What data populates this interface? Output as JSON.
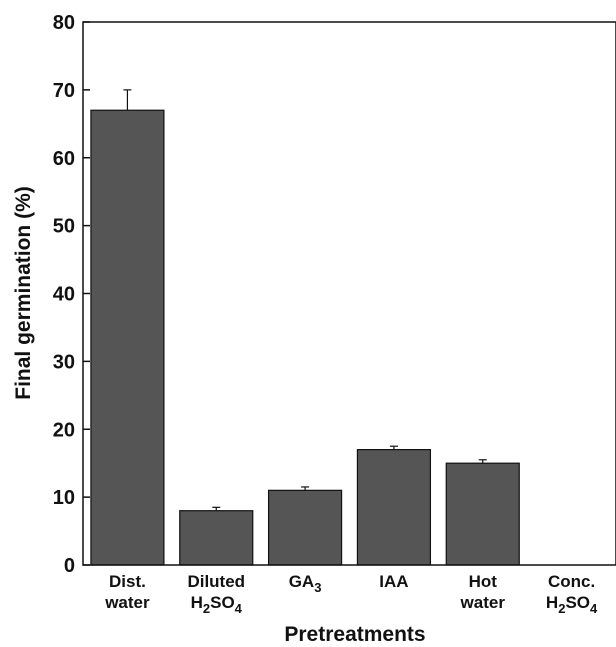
{
  "chart_data": {
    "type": "bar",
    "categories": [
      {
        "lines": [
          {
            "text": "Dist."
          },
          {
            "text": "water"
          }
        ]
      },
      {
        "lines": [
          {
            "text": "Diluted"
          },
          {
            "text": "H",
            "sub_parts": [
              [
                "2",
                "SO"
              ],
              [
                "4",
                ""
              ]
            ]
          }
        ]
      },
      {
        "lines": [
          {
            "text": "GA",
            "sub_parts": [
              [
                "3",
                ""
              ]
            ]
          }
        ]
      },
      {
        "lines": [
          {
            "text": "IAA"
          }
        ]
      },
      {
        "lines": [
          {
            "text": "Hot"
          },
          {
            "text": "water"
          }
        ]
      },
      {
        "lines": [
          {
            "text": "Conc."
          },
          {
            "text": "H",
            "sub_parts": [
              [
                "2",
                "SO"
              ],
              [
                "4",
                ""
              ]
            ]
          }
        ]
      }
    ],
    "values": [
      67,
      8,
      11,
      17,
      15,
      0
    ],
    "errors": [
      3,
      0.5,
      0.5,
      0.5,
      0.5,
      0
    ],
    "xlabel": "Pretreatments",
    "ylabel": "Final germination (%)",
    "ylim": [
      0,
      80
    ],
    "yticks": [
      0,
      10,
      20,
      30,
      40,
      50,
      60,
      70,
      80
    ],
    "bar_color": "#555555",
    "grid": false
  }
}
